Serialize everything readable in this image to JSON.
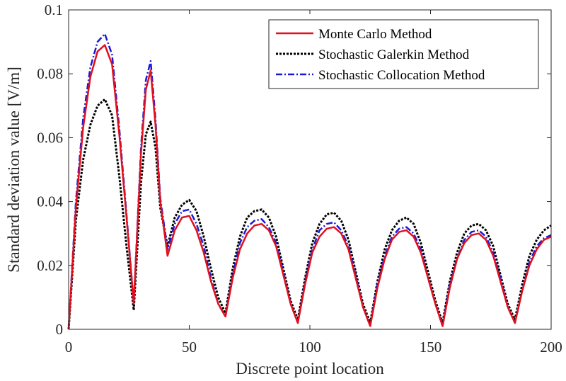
{
  "chart_data": {
    "type": "line",
    "xlabel": "Discrete point location",
    "ylabel": "Standard deviation value [V/m]",
    "xlim": [
      0,
      200
    ],
    "ylim": [
      0,
      0.1
    ],
    "xticks": [
      0,
      50,
      100,
      150,
      200
    ],
    "xtick_labels": [
      "0",
      "50",
      "100",
      "150",
      "200"
    ],
    "yticks": [
      0,
      0.02,
      0.04,
      0.06,
      0.08,
      0.1
    ],
    "ytick_labels": [
      "0",
      "0.02",
      "0.04",
      "0.06",
      "0.08",
      "0.1"
    ],
    "grid": false,
    "legend_position": "top-right",
    "series": [
      {
        "name": "Monte Carlo Method",
        "color": "#e0101e",
        "style": "solid",
        "x": [
          0,
          3,
          6,
          9,
          12,
          15,
          18,
          21,
          24,
          27,
          30,
          32,
          34,
          36,
          38,
          41,
          44,
          47,
          50,
          53,
          56,
          59,
          62,
          65,
          68,
          71,
          74,
          77,
          80,
          83,
          86,
          89,
          92,
          95,
          98,
          101,
          104,
          107,
          110,
          113,
          116,
          119,
          122,
          125,
          128,
          131,
          134,
          137,
          140,
          143,
          146,
          149,
          152,
          155,
          158,
          161,
          164,
          167,
          170,
          173,
          176,
          179,
          182,
          185,
          188,
          191,
          194,
          197,
          200
        ],
        "values": [
          0,
          0.038,
          0.063,
          0.079,
          0.087,
          0.089,
          0.083,
          0.061,
          0.035,
          0.008,
          0.055,
          0.075,
          0.081,
          0.064,
          0.04,
          0.023,
          0.031,
          0.035,
          0.0355,
          0.031,
          0.024,
          0.015,
          0.008,
          0.004,
          0.016,
          0.025,
          0.03,
          0.0325,
          0.033,
          0.031,
          0.026,
          0.017,
          0.008,
          0.002,
          0.014,
          0.024,
          0.029,
          0.0315,
          0.032,
          0.03,
          0.025,
          0.016,
          0.007,
          0.001,
          0.013,
          0.022,
          0.028,
          0.0305,
          0.031,
          0.029,
          0.024,
          0.016,
          0.008,
          0.001,
          0.013,
          0.022,
          0.027,
          0.0295,
          0.03,
          0.028,
          0.023,
          0.015,
          0.007,
          0.002,
          0.012,
          0.02,
          0.025,
          0.028,
          0.029
        ]
      },
      {
        "name": "Stochastic Galerkin Method",
        "color": "#000000",
        "style": "dotted",
        "x": [
          0,
          3,
          6,
          9,
          12,
          15,
          18,
          21,
          24,
          27,
          30,
          32,
          34,
          36,
          38,
          41,
          44,
          47,
          50,
          53,
          56,
          59,
          62,
          65,
          68,
          71,
          74,
          77,
          80,
          83,
          86,
          89,
          92,
          95,
          98,
          101,
          104,
          107,
          110,
          113,
          116,
          119,
          122,
          125,
          128,
          131,
          134,
          137,
          140,
          143,
          146,
          149,
          152,
          155,
          158,
          161,
          164,
          167,
          170,
          173,
          176,
          179,
          182,
          185,
          188,
          191,
          194,
          197,
          200
        ],
        "values": [
          0,
          0.034,
          0.053,
          0.064,
          0.07,
          0.072,
          0.067,
          0.048,
          0.026,
          0.006,
          0.046,
          0.061,
          0.065,
          0.057,
          0.038,
          0.026,
          0.035,
          0.039,
          0.0405,
          0.037,
          0.029,
          0.019,
          0.01,
          0.005,
          0.019,
          0.029,
          0.035,
          0.037,
          0.0375,
          0.035,
          0.029,
          0.019,
          0.009,
          0.003,
          0.016,
          0.027,
          0.033,
          0.036,
          0.0365,
          0.034,
          0.028,
          0.018,
          0.008,
          0.002,
          0.015,
          0.025,
          0.031,
          0.034,
          0.035,
          0.033,
          0.027,
          0.018,
          0.009,
          0.002,
          0.015,
          0.024,
          0.03,
          0.0325,
          0.033,
          0.031,
          0.026,
          0.017,
          0.008,
          0.003,
          0.014,
          0.023,
          0.028,
          0.031,
          0.0325
        ]
      },
      {
        "name": "Stochastic Collocation Method",
        "color": "#1a1ad6",
        "style": "dashdot",
        "x": [
          0,
          3,
          6,
          9,
          12,
          15,
          18,
          21,
          24,
          27,
          30,
          32,
          34,
          36,
          38,
          41,
          44,
          47,
          50,
          53,
          56,
          59,
          62,
          65,
          68,
          71,
          74,
          77,
          80,
          83,
          86,
          89,
          92,
          95,
          98,
          101,
          104,
          107,
          110,
          113,
          116,
          119,
          122,
          125,
          128,
          131,
          134,
          137,
          140,
          143,
          146,
          149,
          152,
          155,
          158,
          161,
          164,
          167,
          170,
          173,
          176,
          179,
          182,
          185,
          188,
          191,
          194,
          197,
          200
        ],
        "values": [
          0,
          0.04,
          0.066,
          0.082,
          0.09,
          0.0925,
          0.086,
          0.063,
          0.036,
          0.008,
          0.057,
          0.078,
          0.084,
          0.066,
          0.041,
          0.025,
          0.033,
          0.037,
          0.0375,
          0.033,
          0.026,
          0.016,
          0.008,
          0.004,
          0.017,
          0.027,
          0.032,
          0.034,
          0.0345,
          0.032,
          0.027,
          0.018,
          0.008,
          0.002,
          0.015,
          0.025,
          0.031,
          0.033,
          0.0335,
          0.031,
          0.026,
          0.017,
          0.007,
          0.001,
          0.014,
          0.023,
          0.029,
          0.0315,
          0.032,
          0.03,
          0.025,
          0.016,
          0.008,
          0.001,
          0.014,
          0.022,
          0.028,
          0.0305,
          0.031,
          0.029,
          0.024,
          0.016,
          0.007,
          0.002,
          0.012,
          0.021,
          0.026,
          0.0285,
          0.0295
        ]
      }
    ]
  }
}
